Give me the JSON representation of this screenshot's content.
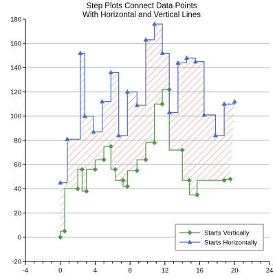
{
  "chart_data": {
    "type": "line",
    "title": "Step Plots Connect Data Points",
    "subtitle": "With Horizontal and Vertical Lines",
    "xlabel": "",
    "ylabel": "",
    "xlim": [
      -4,
      24
    ],
    "ylim": [
      -20,
      180
    ],
    "x_ticks": [
      -4,
      0,
      4,
      8,
      12,
      16,
      20,
      24
    ],
    "y_ticks": [
      -20,
      0,
      20,
      40,
      60,
      80,
      100,
      120,
      140,
      160,
      180
    ],
    "grid": "horizontal",
    "legend_position": "bottom-right",
    "fill_between": "hatched",
    "series": [
      {
        "name": "Starts Vertically",
        "step": "vertical-first",
        "marker": "diamond",
        "color": "#4e9a47",
        "x": [
          0,
          0.5,
          2,
          2.5,
          3,
          4,
          5,
          5.8,
          6.3,
          7.2,
          7.7,
          8.8,
          9.8,
          10.8,
          11.7,
          12.5,
          14,
          14.8,
          15.7,
          18.8,
          19.5
        ],
        "y": [
          0,
          5,
          40,
          56,
          38,
          56,
          64,
          75,
          56,
          47,
          42,
          55,
          64,
          78,
          110,
          122,
          72,
          47,
          35,
          47,
          48
        ]
      },
      {
        "name": "Starts Horizontally",
        "step": "horizontal-first",
        "marker": "triangle",
        "color": "#4a6fc0",
        "x": [
          0,
          0.8,
          2.3,
          2.8,
          3.8,
          4.8,
          5.8,
          6.7,
          7.7,
          8.8,
          9.8,
          10.8,
          11.7,
          12.5,
          13.5,
          14.5,
          15.5,
          16.5,
          17.8,
          18.8,
          20
        ],
        "y": [
          45,
          81,
          152,
          100,
          87,
          112,
          136,
          84,
          120,
          109,
          163,
          176,
          152,
          103,
          144,
          148,
          145,
          101,
          84,
          110,
          112
        ]
      }
    ]
  }
}
